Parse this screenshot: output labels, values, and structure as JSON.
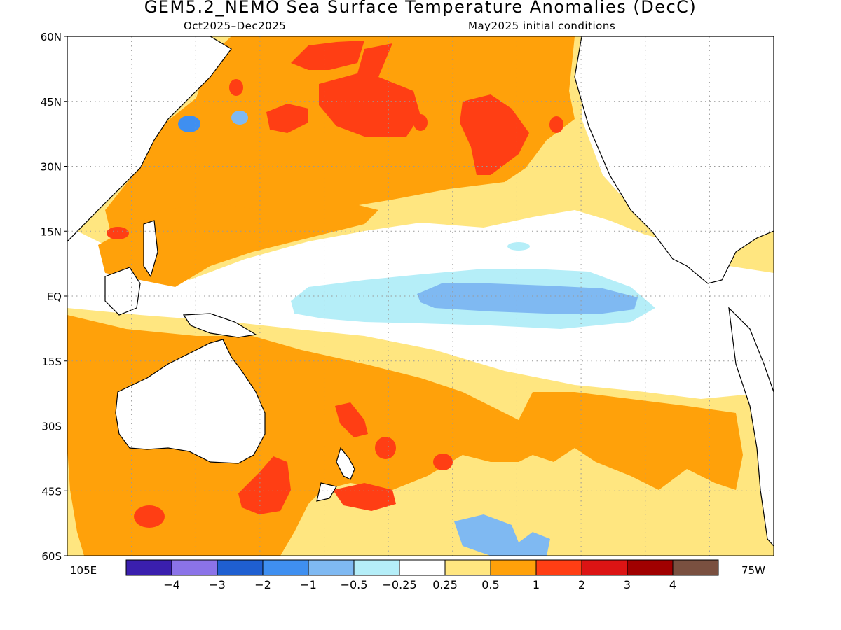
{
  "title": "GEM5.2_NEMO Sea Surface Temperature Anomalies (DecC)",
  "period": "Oct2025–Dec2025",
  "init": "May2025 initial conditions",
  "lat_labels": [
    "60N",
    "45N",
    "30N",
    "15N",
    "EQ",
    "15S",
    "30S",
    "45S",
    "60S"
  ],
  "lon_left_label": "105E",
  "lon_right_label": "75W",
  "colorbar": {
    "colors": [
      "#3a1fae",
      "#8b73e8",
      "#1f5fd1",
      "#3f8ff0",
      "#7fb9f2",
      "#b5eef8",
      "#ffffff",
      "#ffe680",
      "#ffa10a",
      "#ff3e14",
      "#dc1414",
      "#a00000",
      "#7a5040"
    ],
    "labels": [
      "−4",
      "−3",
      "−2",
      "−1",
      "−0.5",
      "−0.25",
      "0.25",
      "0.5",
      "1",
      "2",
      "3",
      "4"
    ]
  }
}
